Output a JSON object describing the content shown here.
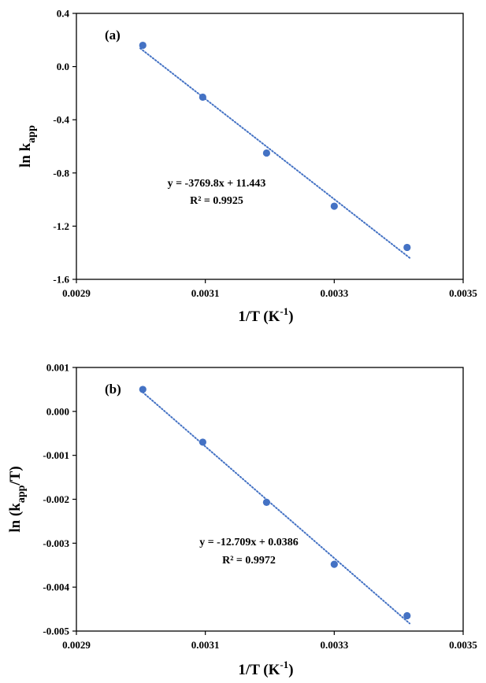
{
  "chart_data": [
    {
      "type": "scatter",
      "panel_label": "(a)",
      "xlabel": {
        "base": "1/T (K",
        "sup": "-1",
        "end": ")"
      },
      "ylabel": {
        "base": "ln k",
        "sub": "app",
        "end": ""
      },
      "xlim": [
        0.0029,
        0.0035
      ],
      "ylim": [
        -1.6,
        0.4
      ],
      "xticks": [
        "0.0029",
        "0.0031",
        "0.0033",
        "0.0035"
      ],
      "yticks": [
        "0.4",
        "0.0",
        "-0.4",
        "-0.8",
        "-1.2",
        "-1.6"
      ],
      "points": [
        {
          "x": 0.003003,
          "y": 0.16
        },
        {
          "x": 0.003096,
          "y": -0.23
        },
        {
          "x": 0.003195,
          "y": -0.65
        },
        {
          "x": 0.0033,
          "y": -1.05
        },
        {
          "x": 0.003413,
          "y": -1.36
        }
      ],
      "trendline": {
        "slope": -3769.8,
        "intercept": 11.443,
        "x_range": [
          0.003003,
          0.003413
        ]
      },
      "equation": "y = -3769.8x + 11.443",
      "r2": "R² = 0.9925",
      "marker_color": "#4472C4",
      "grid": false
    },
    {
      "type": "scatter",
      "panel_label": "(b)",
      "xlabel": {
        "base": "1/T (K",
        "sup": "-1",
        "end": ")"
      },
      "ylabel": {
        "base": "ln (k",
        "sub": "app",
        "end": "/T)"
      },
      "xlim": [
        0.0029,
        0.0035
      ],
      "ylim": [
        -0.005,
        0.001
      ],
      "xticks": [
        "0.0029",
        "0.0031",
        "0.0033",
        "0.0035"
      ],
      "yticks": [
        "0.001",
        "0.000",
        "-0.001",
        "-0.002",
        "-0.003",
        "-0.004",
        "-0.005"
      ],
      "points": [
        {
          "x": 0.003003,
          "y": 0.0005
        },
        {
          "x": 0.003096,
          "y": -0.0007
        },
        {
          "x": 0.003195,
          "y": -0.00207
        },
        {
          "x": 0.0033,
          "y": -0.00348
        },
        {
          "x": 0.003413,
          "y": -0.00465
        }
      ],
      "trendline": {
        "slope": -12.709,
        "intercept": 0.0386,
        "x_range": [
          0.003003,
          0.003413
        ]
      },
      "equation": "y = -12.709x + 0.0386",
      "r2": "R² = 0.9972",
      "marker_color": "#4472C4",
      "grid": false
    }
  ]
}
